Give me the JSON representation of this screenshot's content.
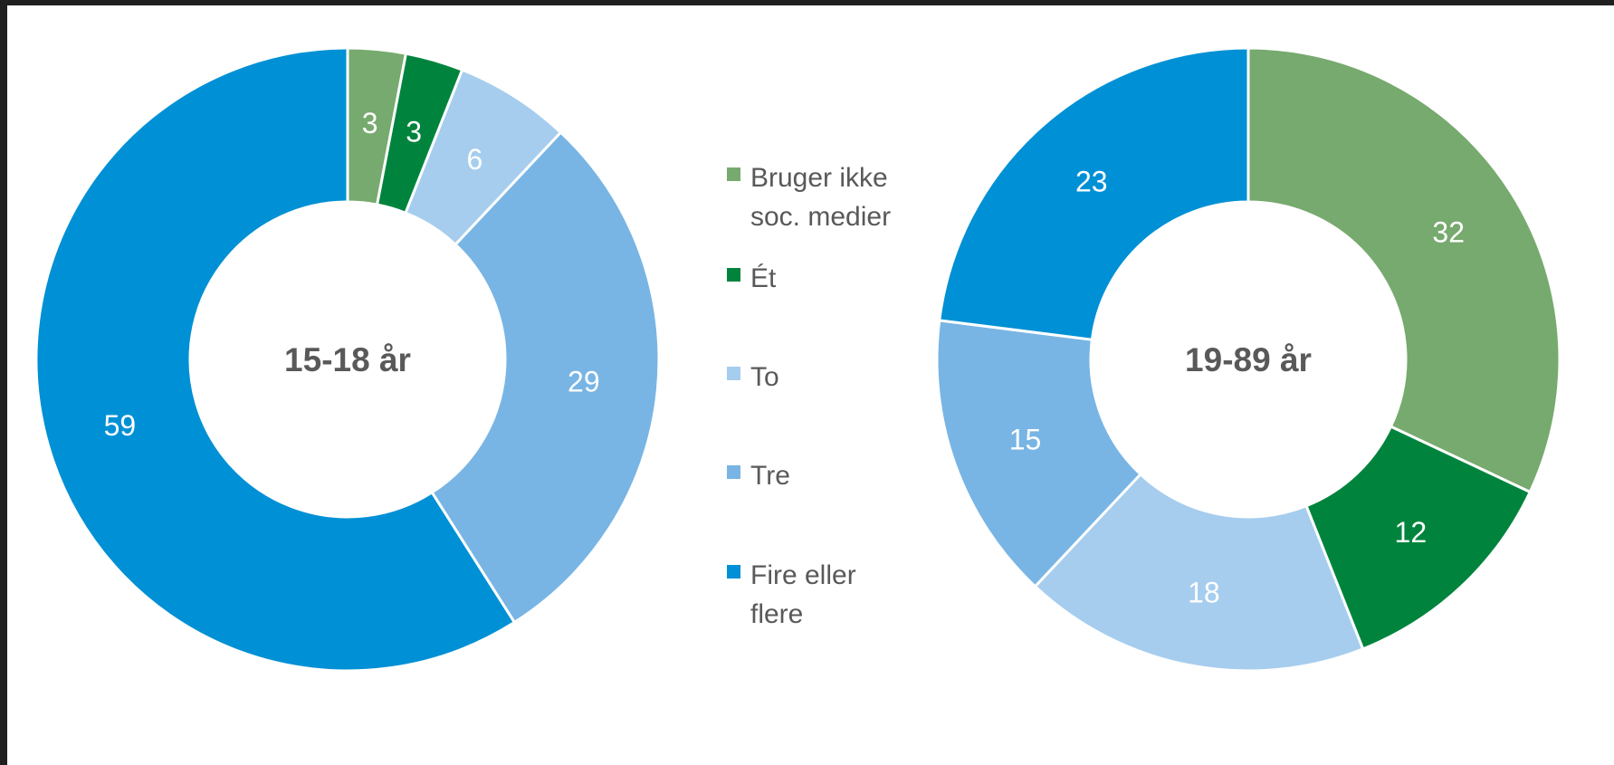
{
  "legend": [
    {
      "label_lines": [
        "Bruger ikke",
        "soc. medier"
      ],
      "color": "#77aa6e"
    },
    {
      "label_lines": [
        "Ét"
      ],
      "color": "#00843d"
    },
    {
      "label_lines": [
        "To"
      ],
      "color": "#a6cdee"
    },
    {
      "label_lines": [
        "Tre"
      ],
      "color": "#78b5e4"
    },
    {
      "label_lines": [
        "Fire eller",
        "flere"
      ],
      "color": "#0090d5"
    }
  ],
  "chart_data": [
    {
      "type": "pie",
      "variant": "donut",
      "title": "15-18 år",
      "categories": [
        "Bruger ikke soc. medier",
        "Ét",
        "To",
        "Tre",
        "Fire eller flere"
      ],
      "values": [
        3,
        3,
        6,
        29,
        59
      ],
      "colors": [
        "#77aa6e",
        "#00843d",
        "#a6cdee",
        "#78b5e4",
        "#0090d5"
      ],
      "start_angle": "12 o'clock",
      "direction": "clockwise"
    },
    {
      "type": "pie",
      "variant": "donut",
      "title": "19-89 år",
      "categories": [
        "Bruger ikke soc. medier",
        "Ét",
        "To",
        "Tre",
        "Fire eller flere"
      ],
      "values": [
        32,
        12,
        18,
        15,
        23
      ],
      "colors": [
        "#77aa6e",
        "#00843d",
        "#a6cdee",
        "#78b5e4",
        "#0090d5"
      ],
      "start_angle": "12 o'clock",
      "direction": "clockwise"
    }
  ]
}
